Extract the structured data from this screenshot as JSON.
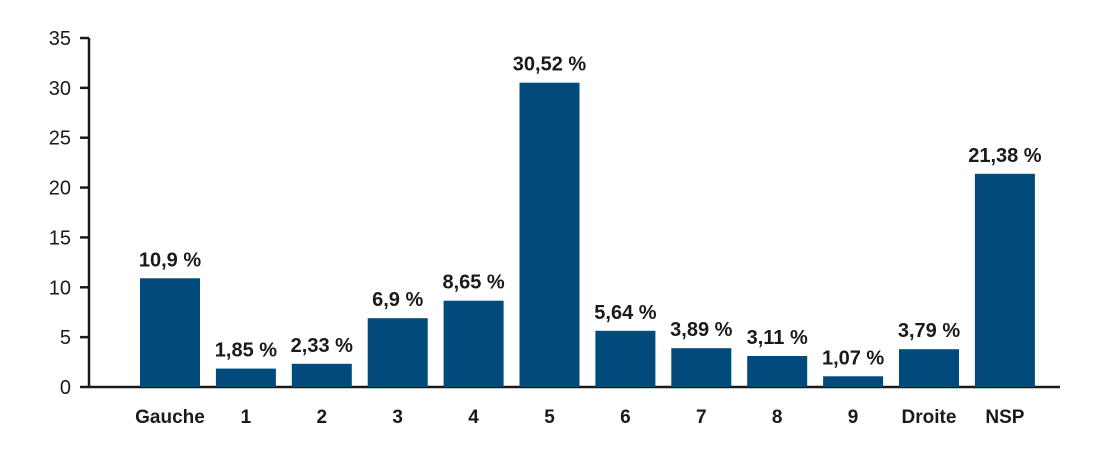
{
  "chart_data": {
    "type": "bar",
    "categories": [
      "Gauche",
      "1",
      "2",
      "3",
      "4",
      "5",
      "6",
      "7",
      "8",
      "9",
      "Droite",
      "NSP"
    ],
    "values": [
      10.9,
      1.85,
      2.33,
      6.9,
      8.65,
      30.52,
      5.64,
      3.89,
      3.11,
      1.07,
      3.79,
      21.38
    ],
    "data_labels": [
      "10,9 %",
      "1,85 %",
      "2,33 %",
      "6,9 %",
      "8,65 %",
      "30,52 %",
      "5,64 %",
      "3,89 %",
      "3,11 %",
      "1,07 %",
      "3,79 %",
      "21,38 %"
    ],
    "yticks": [
      0,
      5,
      10,
      15,
      20,
      25,
      30,
      35
    ],
    "ytick_labels": [
      "0",
      "5",
      "10",
      "15",
      "20",
      "25",
      "30",
      "35"
    ],
    "ylim": [
      0,
      35
    ],
    "title": "",
    "xlabel": "",
    "ylabel": "",
    "grid": false,
    "legend": "none",
    "colors": {
      "bar": "#004a7c",
      "axis": "#1a1a1a"
    }
  }
}
